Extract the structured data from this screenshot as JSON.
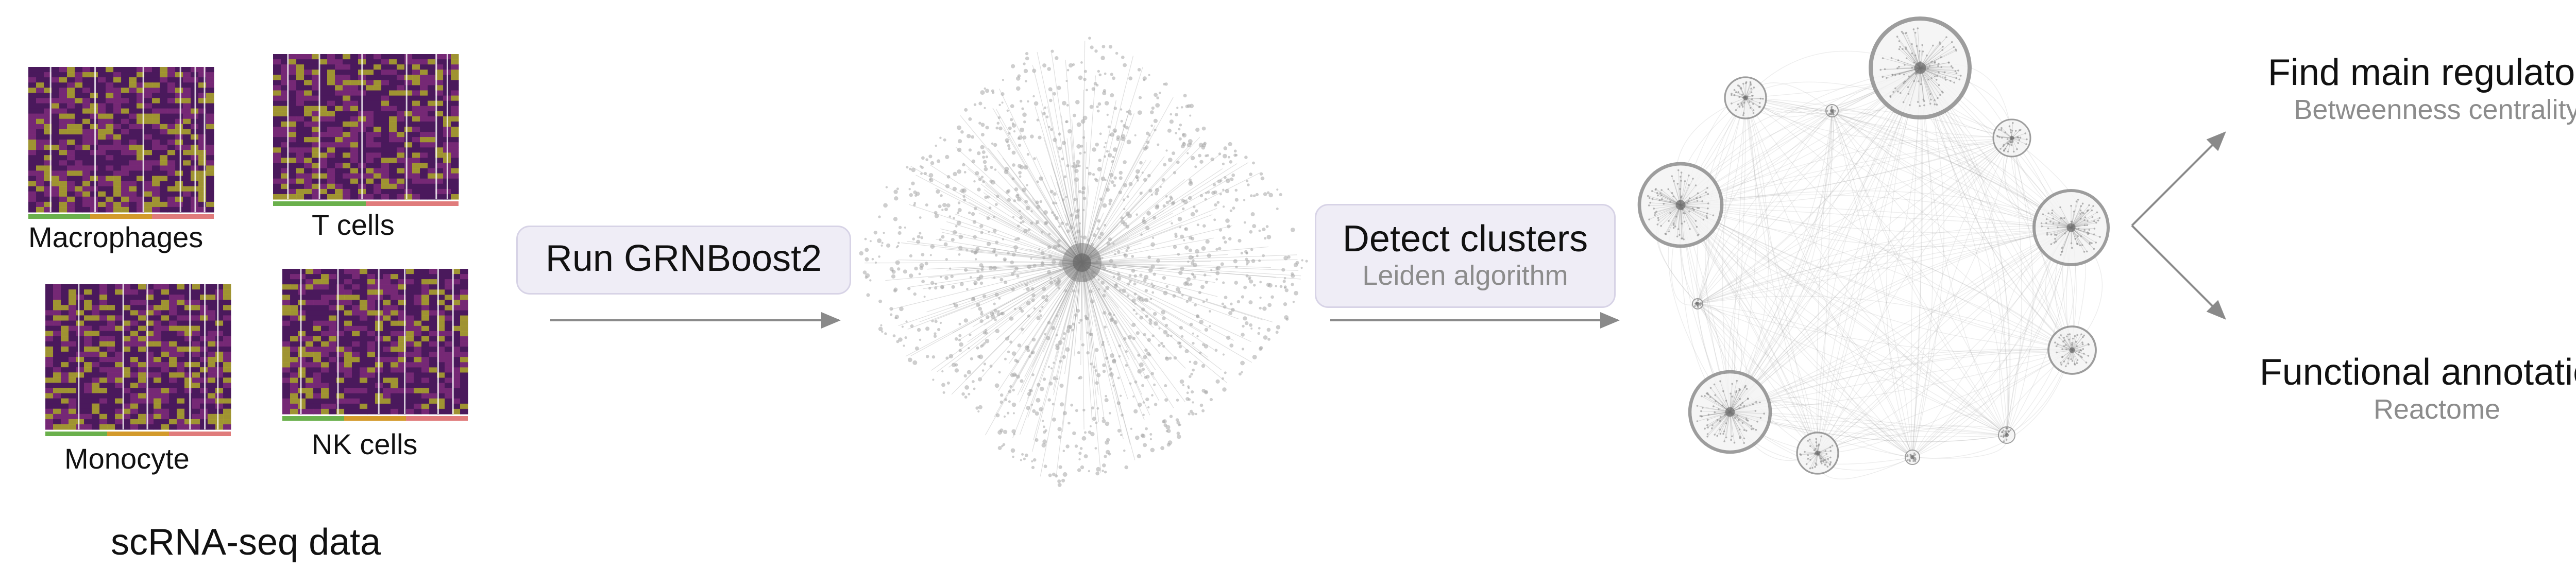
{
  "heatmaps": [
    {
      "id": "macrophages",
      "label": "Macrophages",
      "seed": 11,
      "bars": [
        "#6ab04c",
        "#d39a2b",
        "#e07b7b"
      ],
      "splits": [
        0.12,
        0.36,
        0.62,
        0.82,
        0.9,
        0.95
      ]
    },
    {
      "id": "t-cells",
      "label": "T cells",
      "seed": 23,
      "bars": [
        "#6ab04c",
        "#e07b7b"
      ],
      "splits": [
        0.08,
        0.25,
        0.48,
        0.72,
        0.88,
        0.94
      ]
    },
    {
      "id": "monocyte",
      "label": "Monocyte",
      "seed": 37,
      "bars": [
        "#6ab04c",
        "#d39a2b",
        "#e07b7b"
      ],
      "splits": [
        0.18,
        0.42,
        0.55,
        0.78,
        0.86,
        0.93
      ]
    },
    {
      "id": "nk-cells",
      "label": "NK cells",
      "seed": 53,
      "bars": [
        "#6ab04c",
        "#d39a2b",
        "#e07b7b"
      ],
      "splits": [
        0.1,
        0.3,
        0.52,
        0.66,
        0.84,
        0.92
      ]
    }
  ],
  "data_caption": "scRNA-seq data",
  "step1": {
    "title": "Run GRNBoost2"
  },
  "step2": {
    "title": "Detect clusters",
    "subtitle": "Leiden algorithm"
  },
  "outputs": [
    {
      "title": "Find main regulators",
      "subtitle": "Betweenness centrality"
    },
    {
      "title": "Functional annotation",
      "subtitle": "Reactome"
    }
  ],
  "colors": {
    "heat_low": "#4a1a5c",
    "heat_mid": "#7a2a78",
    "heat_high": "#a8a12e",
    "arrow": "#8a8a8a",
    "node": "#9a9a9a",
    "step_bg": "#efedf6"
  }
}
